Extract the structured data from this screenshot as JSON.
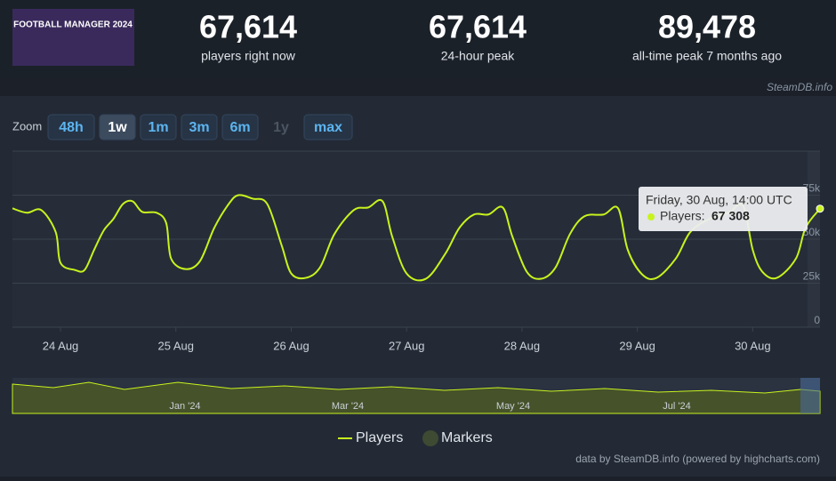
{
  "header": {
    "logo_text": "FOOTBALL MANAGER 2024",
    "stats": [
      {
        "value": "67,614",
        "label": "players right now"
      },
      {
        "value": "67,614",
        "label": "24-hour peak"
      },
      {
        "value": "89,478",
        "label": "all-time peak 7 months ago"
      }
    ],
    "source": "SteamDB.info"
  },
  "zoom": {
    "label": "Zoom",
    "buttons": [
      "48h",
      "1w",
      "1m",
      "3m",
      "6m",
      "1y",
      "max"
    ],
    "active": "1w",
    "disabled": "1y"
  },
  "chart_data": {
    "type": "line",
    "x": [
      0,
      3,
      6,
      9,
      10,
      13,
      15,
      17,
      19,
      21,
      23,
      25,
      27,
      30,
      32,
      33,
      36,
      39,
      42,
      45,
      47,
      50,
      53,
      56,
      58,
      61,
      64,
      67,
      71,
      74,
      77,
      79,
      82,
      86,
      90,
      93,
      96,
      99,
      102,
      104,
      107,
      110,
      113,
      116,
      119,
      123,
      126,
      128,
      131,
      134,
      138,
      141,
      145,
      149,
      152,
      154,
      156,
      159,
      163,
      165,
      168
    ],
    "series": [
      {
        "name": "Players",
        "color": "#c8f31d",
        "values": [
          67500,
          65000,
          66500,
          54000,
          36500,
          32500,
          32500,
          44000,
          55000,
          61500,
          70000,
          71500,
          65500,
          65000,
          59000,
          39000,
          33000,
          37500,
          56500,
          70000,
          75000,
          73000,
          70000,
          46500,
          30500,
          28000,
          34000,
          53000,
          66500,
          68000,
          71500,
          51500,
          30500,
          27500,
          41500,
          56500,
          64000,
          64000,
          68000,
          51500,
          31500,
          27500,
          34000,
          53000,
          63000,
          64000,
          67500,
          44000,
          30000,
          28000,
          39000,
          54000,
          61500,
          65000,
          69000,
          44000,
          31500,
          28000,
          39000,
          56500,
          67308
        ]
      }
    ],
    "xlim": [
      0,
      168
    ],
    "xticks": [
      {
        "value": 10,
        "label": "24 Aug"
      },
      {
        "value": 34,
        "label": "25 Aug"
      },
      {
        "value": 58,
        "label": "26 Aug"
      },
      {
        "value": 82,
        "label": "27 Aug"
      },
      {
        "value": 106,
        "label": "28 Aug"
      },
      {
        "value": 130,
        "label": "29 Aug"
      },
      {
        "value": 154,
        "label": "30 Aug"
      }
    ],
    "ylim": [
      0,
      100000
    ],
    "yticks": [
      0,
      {
        "value": 25000,
        "label": "25k"
      },
      {
        "value": 50000,
        "label": "50k"
      },
      {
        "value": 75000,
        "label": "75k"
      }
    ],
    "grid": true,
    "tooltip": {
      "title": "Friday, 30 Aug, 14:00 UTC",
      "label": "Players:",
      "value_label": "67 308"
    },
    "markers": {
      "name": "Markers",
      "color": "#3e4a32"
    },
    "navigator_labels": [
      "Jan '24",
      "Mar '24",
      "May '24",
      "Jul '24"
    ],
    "credit": "data by SteamDB.info (powered by highcharts.com)"
  }
}
